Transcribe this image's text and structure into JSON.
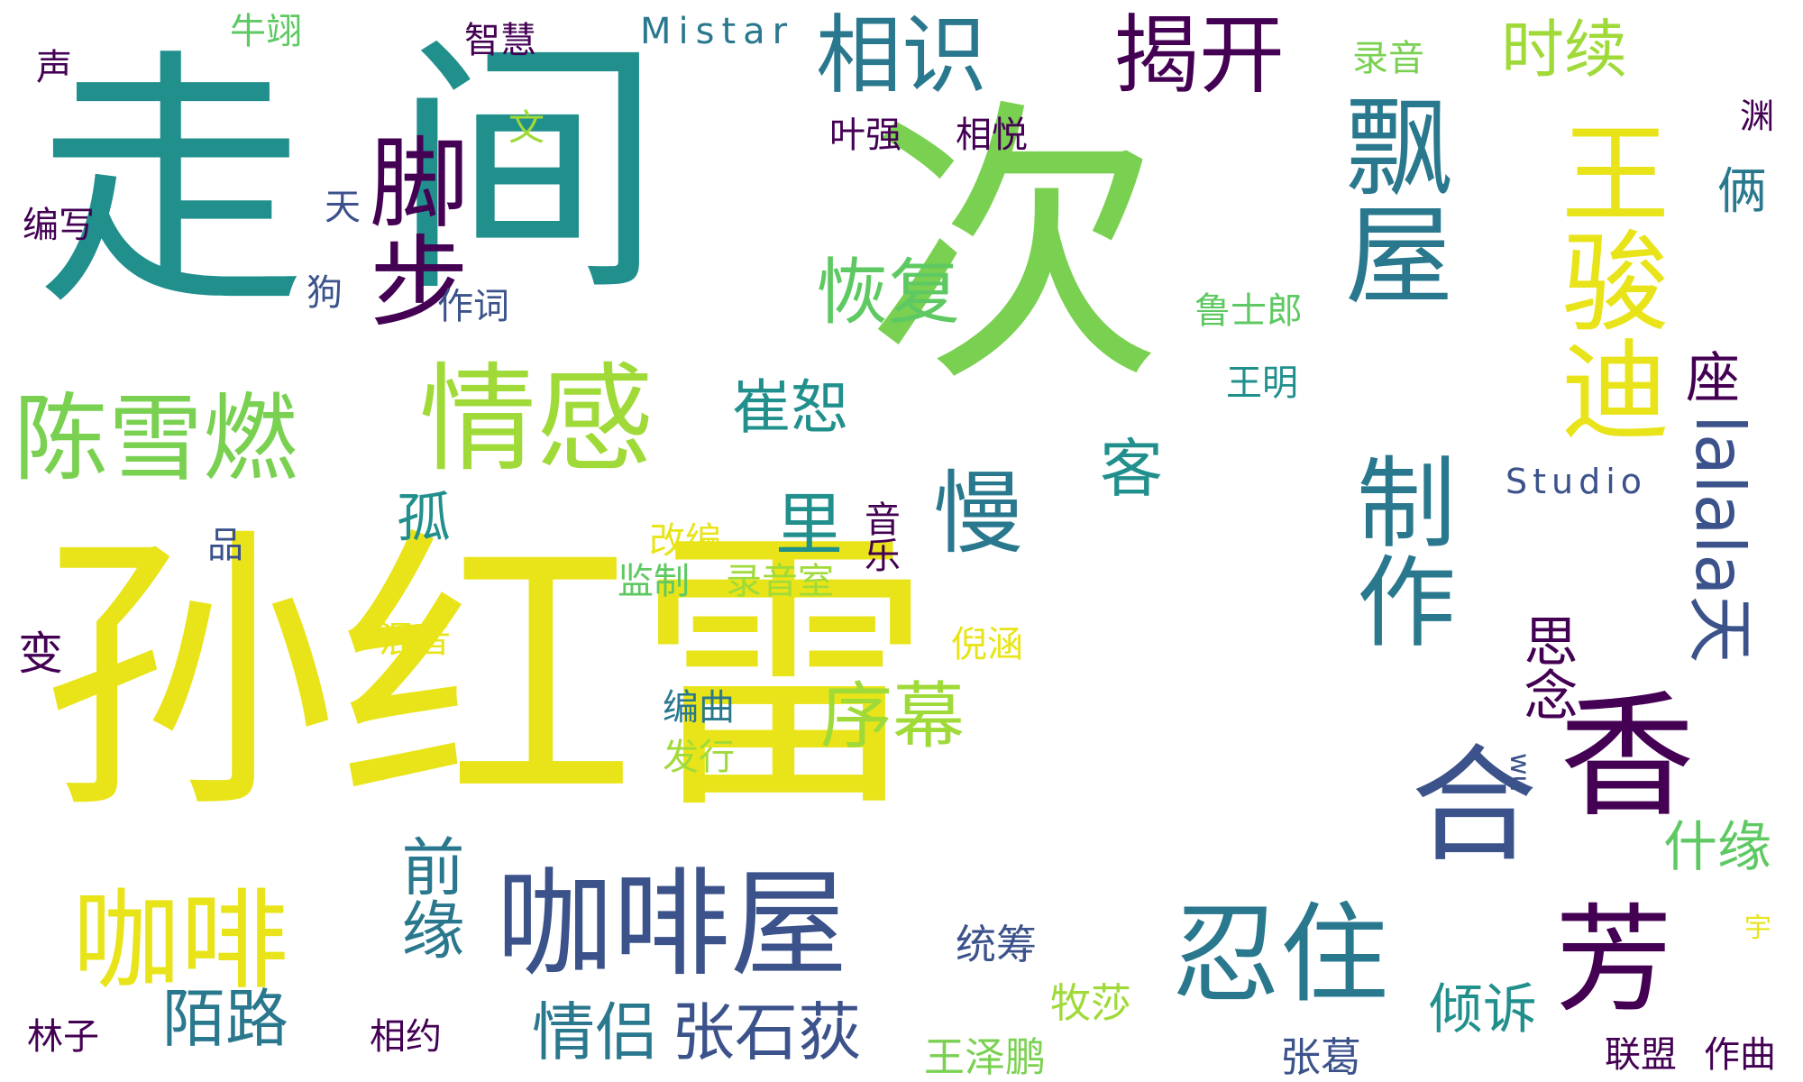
{
  "palette": {
    "purple": "#440154",
    "indigo": "#3b528b",
    "teal": "#21908d",
    "green": "#5ec962",
    "lime": "#7ad151",
    "yellow": "#e8e419"
  },
  "words": [
    {
      "text": "走",
      "color": "#21908d"
    },
    {
      "text": "间",
      "color": "#21908d"
    },
    {
      "text": "次",
      "color": "#7ad151"
    },
    {
      "text": "孙红雷",
      "color": "#e8e419"
    },
    {
      "text": "咖啡屋",
      "color": "#3b528b"
    },
    {
      "text": "咖啡",
      "color": "#e8e419"
    },
    {
      "text": "陈雪燃",
      "color": "#7ad151"
    },
    {
      "text": "情感",
      "color": "#a0da39"
    },
    {
      "text": "相识",
      "color": "#2a788e"
    },
    {
      "text": "揭开",
      "color": "#440154"
    },
    {
      "text": "时续",
      "color": "#a0da39"
    },
    {
      "text": "脚步",
      "color": "#440154"
    },
    {
      "text": "飘屋",
      "color": "#2a788e"
    },
    {
      "text": "王骏迪",
      "color": "#e8e419"
    },
    {
      "text": "恢复",
      "color": "#5ec962"
    },
    {
      "text": "崔恕",
      "color": "#21908d"
    },
    {
      "text": "里",
      "color": "#21908d"
    },
    {
      "text": "慢",
      "color": "#2a788e"
    },
    {
      "text": "客",
      "color": "#21908d"
    },
    {
      "text": "孤",
      "color": "#21908d"
    },
    {
      "text": "序幕",
      "color": "#a0da39"
    },
    {
      "text": "制作",
      "color": "#2a788e"
    },
    {
      "text": "合",
      "color": "#3b528b"
    },
    {
      "text": "忍住",
      "color": "#2a788e"
    },
    {
      "text": "香",
      "color": "#440154"
    },
    {
      "text": "芳",
      "color": "#440154"
    },
    {
      "text": "lalala天",
      "color": "#3b528b"
    },
    {
      "text": "座",
      "color": "#440154"
    },
    {
      "text": "俩",
      "color": "#2a788e"
    },
    {
      "text": "渊",
      "color": "#440154"
    },
    {
      "text": "思念",
      "color": "#440154"
    },
    {
      "text": "什缘",
      "color": "#5ec962"
    },
    {
      "text": "前缘",
      "color": "#2a788e"
    },
    {
      "text": "陌路",
      "color": "#2a788e"
    },
    {
      "text": "情侣",
      "color": "#2a788e"
    },
    {
      "text": "张石荻",
      "color": "#3b528b"
    },
    {
      "text": "倾诉",
      "color": "#21908d"
    },
    {
      "text": "张葛",
      "color": "#3b528b"
    },
    {
      "text": "联盟",
      "color": "#440154"
    },
    {
      "text": "作曲",
      "color": "#440154"
    },
    {
      "text": "王泽鹏",
      "color": "#7ad151"
    },
    {
      "text": "牧莎",
      "color": "#a0da39"
    },
    {
      "text": "统筹",
      "color": "#3b528b"
    },
    {
      "text": "林子",
      "color": "#440154"
    },
    {
      "text": "相约",
      "color": "#440154"
    },
    {
      "text": "声",
      "color": "#440154"
    },
    {
      "text": "牛翊",
      "color": "#5ec962"
    },
    {
      "text": "智慧",
      "color": "#440154"
    },
    {
      "text": "Mistar",
      "color": "#2a788e"
    },
    {
      "text": "录音",
      "color": "#7ad151"
    },
    {
      "text": "文",
      "color": "#a0da39"
    },
    {
      "text": "天",
      "color": "#3b528b"
    },
    {
      "text": "编写",
      "color": "#440154"
    },
    {
      "text": "狗",
      "color": "#3b528b"
    },
    {
      "text": "作词",
      "color": "#3b528b"
    },
    {
      "text": "叶强",
      "color": "#440154"
    },
    {
      "text": "相悦",
      "color": "#440154"
    },
    {
      "text": "鲁士郎",
      "color": "#5ec962"
    },
    {
      "text": "王明",
      "color": "#21908d"
    },
    {
      "text": "Studio",
      "color": "#3b528b"
    },
    {
      "text": "品",
      "color": "#3b528b"
    },
    {
      "text": "改编",
      "color": "#e8e419"
    },
    {
      "text": "音乐",
      "color": "#440154"
    },
    {
      "text": "监制",
      "color": "#5ec962"
    },
    {
      "text": "录音室",
      "color": "#a0da39"
    },
    {
      "text": "混音",
      "color": "#e8e419"
    },
    {
      "text": "倪涵",
      "color": "#e8e419"
    },
    {
      "text": "编曲",
      "color": "#2a788e"
    },
    {
      "text": "发行",
      "color": "#a0da39"
    },
    {
      "text": "变",
      "color": "#440154"
    },
    {
      "text": "wu",
      "color": "#3b528b"
    },
    {
      "text": "宇",
      "color": "#e8e419"
    }
  ]
}
